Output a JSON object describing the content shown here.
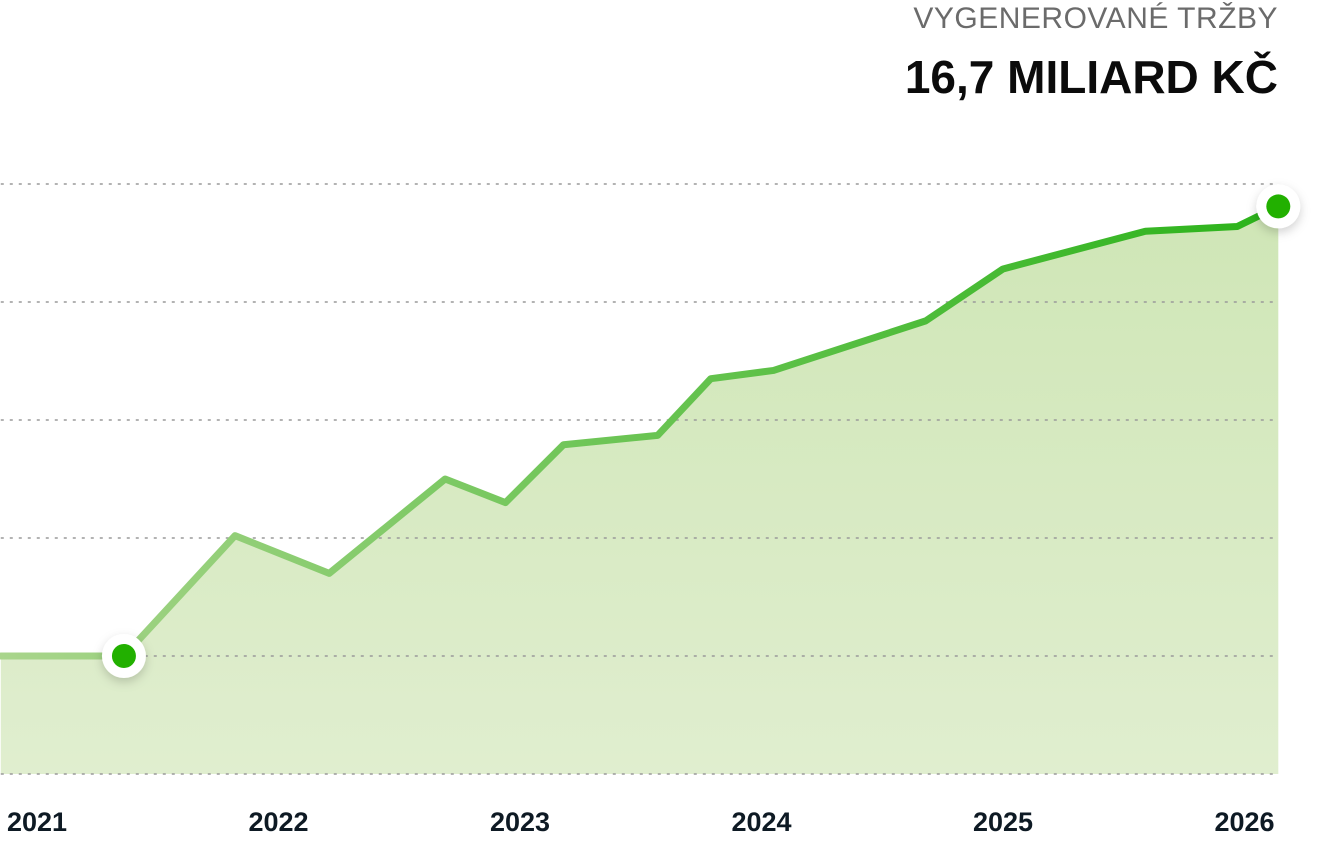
{
  "header": {
    "subtitle": "VYGENEROVANÉ TRŽBY",
    "total": "16,7 MILIARD KČ"
  },
  "chart_data": {
    "type": "area",
    "title": "16,7 MILIARD KČ",
    "subtitle": "VYGENEROVANÉ TRŽBY",
    "xlabel": "",
    "ylabel": "",
    "x_ticks": [
      "2021",
      "2022",
      "2023",
      "2024",
      "2025",
      "2026"
    ],
    "x_tick_values": [
      2021,
      2022,
      2023,
      2024,
      2025,
      2026
    ],
    "xlim": [
      2020.85,
      2026.14
    ],
    "ylim": [
      0,
      5
    ],
    "grid": true,
    "y_gridlines": [
      0,
      1,
      2,
      3,
      4,
      5
    ],
    "series": [
      {
        "name": "Vygenerované tržby",
        "x": [
          2020.85,
          2021.36,
          2021.82,
          2022.21,
          2022.69,
          2022.94,
          2023.18,
          2023.57,
          2023.79,
          2024.05,
          2024.68,
          2025.0,
          2025.59,
          2025.97,
          2026.14
        ],
        "y": [
          1.0,
          1.0,
          2.02,
          1.7,
          2.5,
          2.3,
          2.79,
          2.87,
          3.35,
          3.42,
          3.84,
          4.28,
          4.6,
          4.64,
          4.81
        ]
      }
    ],
    "highlighted_points": [
      1,
      14
    ],
    "colors": {
      "line_start": "#a9d58c",
      "line_end": "#2bb31a",
      "fill": "#d6eac4",
      "marker": "#22b000",
      "grid": "#9a9a9a"
    }
  }
}
